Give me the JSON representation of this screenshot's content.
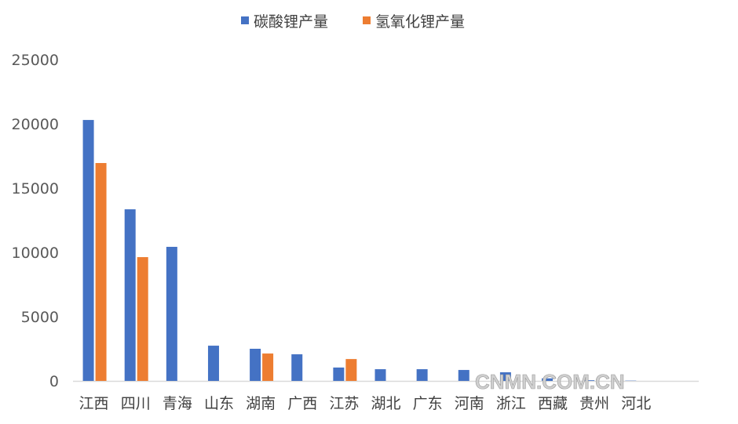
{
  "chart_data": {
    "type": "bar",
    "categories": [
      "江西",
      "四川",
      "青海",
      "山东",
      "湖南",
      "广西",
      "江苏",
      "湖北",
      "广东",
      "河南",
      "浙江",
      "西藏",
      "贵州",
      "河北"
    ],
    "series": [
      {
        "name": "碳酸锂产量",
        "color": "#4472C4",
        "values": [
          20300,
          13350,
          10430,
          2740,
          2500,
          2070,
          1040,
          910,
          910,
          850,
          670,
          200,
          50,
          20
        ]
      },
      {
        "name": "氢氧化锂产量",
        "color": "#ED7D31",
        "values": [
          16950,
          9630,
          0,
          0,
          2130,
          0,
          1700,
          0,
          0,
          0,
          0,
          0,
          0,
          0
        ]
      }
    ],
    "yticks": [
      0,
      5000,
      10000,
      15000,
      20000,
      25000
    ],
    "ylim": [
      0,
      25000
    ],
    "grid": false,
    "legend": "top"
  },
  "watermark": "CNMN.COM.CN"
}
